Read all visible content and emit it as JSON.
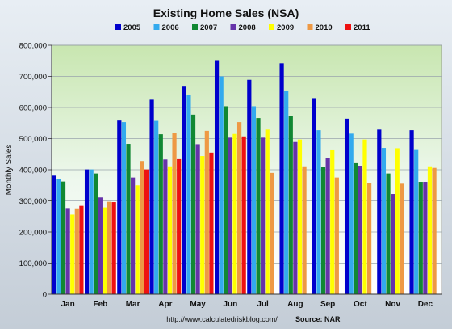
{
  "chart_data": {
    "type": "bar",
    "title": "Existing Home Sales (NSA)",
    "ylabel": "Monthly Sales",
    "xlabel": "",
    "ylim": [
      0,
      800000
    ],
    "yticks": [
      0,
      100000,
      200000,
      300000,
      400000,
      500000,
      600000,
      700000,
      800000
    ],
    "ytick_labels": [
      "0",
      "100,000",
      "200,000",
      "300,000",
      "400,000",
      "500,000",
      "600,000",
      "700,000",
      "800,000"
    ],
    "grid": true,
    "legend_position": "top",
    "categories": [
      "Jan",
      "Feb",
      "Mar",
      "Apr",
      "May",
      "Jun",
      "Jul",
      "Aug",
      "Sep",
      "Oct",
      "Nov",
      "Dec"
    ],
    "series": [
      {
        "name": "2005",
        "color": "#0000cc",
        "values": [
          381000,
          401000,
          558000,
          625000,
          667000,
          752000,
          689000,
          742000,
          630000,
          564000,
          529000,
          527000
        ]
      },
      {
        "name": "2006",
        "color": "#33aaee",
        "values": [
          370000,
          401000,
          553000,
          557000,
          640000,
          700000,
          604000,
          652000,
          527000,
          516000,
          470000,
          466000
        ]
      },
      {
        "name": "2007",
        "color": "#118833",
        "values": [
          362000,
          388000,
          483000,
          514000,
          577000,
          604000,
          566000,
          574000,
          410000,
          421000,
          388000,
          361000
        ]
      },
      {
        "name": "2008",
        "color": "#6633aa",
        "values": [
          277000,
          311000,
          375000,
          433000,
          482000,
          503000,
          503000,
          489000,
          438000,
          413000,
          322000,
          361000
        ]
      },
      {
        "name": "2009",
        "color": "#ffff00",
        "values": [
          256000,
          279000,
          350000,
          411000,
          444000,
          515000,
          529000,
          497000,
          465000,
          497000,
          469000,
          411000
        ]
      },
      {
        "name": "2010",
        "color": "#ee9944",
        "values": [
          276000,
          297000,
          428000,
          519000,
          525000,
          553000,
          390000,
          411000,
          375000,
          358000,
          355000,
          406000
        ]
      },
      {
        "name": "2011",
        "color": "#ee1111",
        "values": [
          284000,
          296000,
          401000,
          434000,
          455000,
          507000,
          null,
          null,
          null,
          null,
          null,
          null
        ]
      }
    ]
  },
  "footer": {
    "url": "http://www.calculatedriskblog.com/",
    "source": "Source: NAR"
  }
}
